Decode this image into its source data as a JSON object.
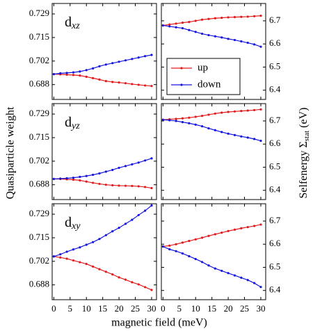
{
  "y_label": "Quasiparticle weight",
  "y2_label": "Selfenergy Σ",
  "y2_label_sub": "stat",
  "y2_label_end": "(eV)",
  "x_label": "magnetic field (meV)",
  "chart_data": [
    {
      "type": "line",
      "annotation": "d",
      "annotation_subscript": "xz",
      "yaxis_side": "left",
      "show_xtick_labels": false,
      "x": [
        0,
        2,
        4,
        6,
        8,
        10,
        12,
        14,
        16,
        18,
        20,
        22,
        24,
        26,
        28,
        30
      ],
      "xlim": [
        -0.5,
        31.5
      ],
      "xticks": [
        0,
        5,
        10,
        15,
        20,
        25,
        30
      ],
      "ylim": [
        0.68,
        0.735
      ],
      "yticks": [
        {
          "value": 0.6885,
          "label": "0.688"
        },
        0.702,
        {
          "value": 0.7155,
          "label": "0.715"
        },
        0.729
      ],
      "series": [
        {
          "name": "up",
          "color": "#e31a1c",
          "values": [
            0.6945,
            0.6944,
            0.6942,
            0.694,
            0.6937,
            0.693,
            0.6922,
            0.6914,
            0.6905,
            0.69,
            0.6897,
            0.6893,
            0.6888,
            0.6884,
            0.688,
            0.6877
          ]
        },
        {
          "name": "down",
          "color": "#1515e0",
          "values": [
            0.6945,
            0.695,
            0.6952,
            0.6955,
            0.696,
            0.6968,
            0.6978,
            0.699,
            0.7,
            0.7008,
            0.7016,
            0.7024,
            0.7032,
            0.704,
            0.7048,
            0.7055
          ]
        }
      ]
    },
    {
      "type": "line",
      "yaxis_side": "right",
      "show_xtick_labels": false,
      "legend": "center left",
      "x": [
        0,
        2,
        4,
        6,
        8,
        10,
        12,
        14,
        16,
        18,
        20,
        22,
        24,
        26,
        28,
        30
      ],
      "xlim": [
        -0.5,
        31.5
      ],
      "xticks": [
        0,
        5,
        10,
        15,
        20,
        25,
        30
      ],
      "ylim": [
        6.36,
        6.775
      ],
      "yticks": [
        6.4,
        6.5,
        6.6,
        6.7
      ],
      "series": [
        {
          "name": "up",
          "color": "#e31a1c",
          "values": [
            6.68,
            6.684,
            6.688,
            6.692,
            6.695,
            6.7,
            6.705,
            6.708,
            6.711,
            6.713,
            6.715,
            6.716,
            6.717,
            6.718,
            6.72,
            6.722
          ]
        },
        {
          "name": "down",
          "color": "#1515e0",
          "values": [
            6.68,
            6.676,
            6.672,
            6.668,
            6.66,
            6.652,
            6.644,
            6.638,
            6.633,
            6.628,
            6.622,
            6.617,
            6.611,
            6.605,
            6.598,
            6.588
          ]
        }
      ]
    },
    {
      "type": "line",
      "annotation": "d",
      "annotation_subscript": "yz",
      "yaxis_side": "left",
      "show_xtick_labels": false,
      "x": [
        0,
        2,
        4,
        6,
        8,
        10,
        12,
        14,
        16,
        18,
        20,
        22,
        24,
        26,
        28,
        30
      ],
      "xlim": [
        -0.5,
        31.5
      ],
      "xticks": [
        0,
        5,
        10,
        15,
        20,
        25,
        30
      ],
      "ylim": [
        0.68,
        0.735
      ],
      "yticks": [
        {
          "value": 0.6885,
          "label": "0.688"
        },
        0.702,
        {
          "value": 0.7155,
          "label": "0.715"
        },
        0.729
      ],
      "series": [
        {
          "name": "up",
          "color": "#e31a1c",
          "values": [
            0.6918,
            0.6918,
            0.6916,
            0.6914,
            0.691,
            0.6903,
            0.6896,
            0.689,
            0.6885,
            0.6882,
            0.688,
            0.6879,
            0.6878,
            0.6876,
            0.6872,
            0.6866
          ]
        },
        {
          "name": "down",
          "color": "#1515e0",
          "values": [
            0.6918,
            0.692,
            0.6922,
            0.6925,
            0.693,
            0.6935,
            0.6942,
            0.695,
            0.696,
            0.697,
            0.6982,
            0.6992,
            0.7002,
            0.7012,
            0.7024,
            0.7036
          ]
        }
      ]
    },
    {
      "type": "line",
      "yaxis_side": "right",
      "show_xtick_labels": false,
      "x": [
        0,
        2,
        4,
        6,
        8,
        10,
        12,
        14,
        16,
        18,
        20,
        22,
        24,
        26,
        28,
        30
      ],
      "xlim": [
        -0.5,
        31.5
      ],
      "xticks": [
        0,
        5,
        10,
        15,
        20,
        25,
        30
      ],
      "ylim": [
        6.36,
        6.775
      ],
      "yticks": [
        6.4,
        6.5,
        6.6,
        6.7
      ],
      "series": [
        {
          "name": "up",
          "color": "#e31a1c",
          "values": [
            6.705,
            6.707,
            6.709,
            6.711,
            6.714,
            6.718,
            6.722,
            6.727,
            6.732,
            6.736,
            6.739,
            6.741,
            6.743,
            6.745,
            6.747,
            6.75
          ]
        },
        {
          "name": "down",
          "color": "#1515e0",
          "values": [
            6.705,
            6.703,
            6.7,
            6.695,
            6.69,
            6.684,
            6.677,
            6.668,
            6.66,
            6.652,
            6.645,
            6.639,
            6.633,
            6.628,
            6.622,
            6.614
          ]
        }
      ]
    },
    {
      "type": "line",
      "annotation": "d",
      "annotation_subscript": "xy",
      "yaxis_side": "left",
      "show_xtick_labels": true,
      "x": [
        0,
        2,
        4,
        6,
        8,
        10,
        12,
        14,
        16,
        18,
        20,
        22,
        24,
        26,
        28,
        30
      ],
      "xlim": [
        -0.5,
        31.5
      ],
      "xticks": [
        0,
        5,
        10,
        15,
        20,
        25,
        30
      ],
      "ylim": [
        0.68,
        0.735
      ],
      "yticks": [
        {
          "value": 0.6885,
          "label": "0.688"
        },
        0.702,
        {
          "value": 0.7155,
          "label": "0.715"
        },
        0.729
      ],
      "series": [
        {
          "name": "up",
          "color": "#e31a1c",
          "values": [
            0.7048,
            0.7042,
            0.7035,
            0.7025,
            0.7015,
            0.7005,
            0.699,
            0.6975,
            0.696,
            0.6945,
            0.6928,
            0.6915,
            0.69,
            0.6888,
            0.6872,
            0.6856
          ]
        },
        {
          "name": "down",
          "color": "#1515e0",
          "values": [
            0.7048,
            0.706,
            0.7075,
            0.7088,
            0.71,
            0.7115,
            0.713,
            0.7148,
            0.717,
            0.7192,
            0.7212,
            0.7235,
            0.7258,
            0.7285,
            0.731,
            0.734
          ]
        }
      ]
    },
    {
      "type": "line",
      "yaxis_side": "right",
      "show_xtick_labels": true,
      "x": [
        0,
        2,
        4,
        6,
        8,
        10,
        12,
        14,
        16,
        18,
        20,
        22,
        24,
        26,
        28,
        30
      ],
      "xlim": [
        -0.5,
        31.5
      ],
      "xticks": [
        0,
        5,
        10,
        15,
        20,
        25,
        30
      ],
      "ylim": [
        6.36,
        6.775
      ],
      "yticks": [
        6.4,
        6.5,
        6.6,
        6.7
      ],
      "series": [
        {
          "name": "up",
          "color": "#e31a1c",
          "values": [
            6.59,
            6.594,
            6.6,
            6.607,
            6.614,
            6.621,
            6.628,
            6.636,
            6.643,
            6.65,
            6.657,
            6.663,
            6.669,
            6.674,
            6.679,
            6.685
          ]
        },
        {
          "name": "down",
          "color": "#1515e0",
          "values": [
            6.59,
            6.578,
            6.57,
            6.56,
            6.548,
            6.536,
            6.523,
            6.508,
            6.495,
            6.485,
            6.475,
            6.465,
            6.455,
            6.445,
            6.432,
            6.415
          ]
        }
      ]
    }
  ]
}
